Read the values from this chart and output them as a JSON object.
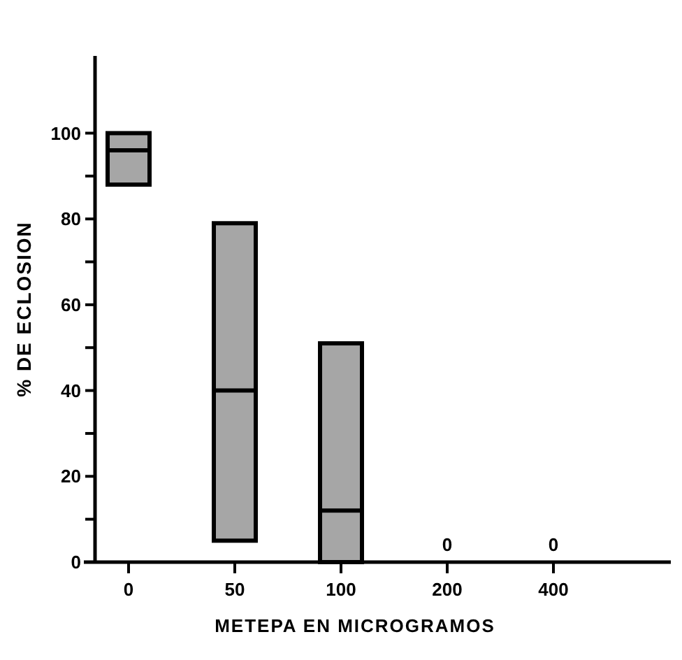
{
  "chart_data": {
    "type": "box",
    "xlabel": "METEPA  EN  MICROGRAMOS",
    "ylabel": "%  DE  ECLOSION",
    "categories": [
      "0",
      "50",
      "100",
      "200",
      "400"
    ],
    "color": "#a6a6a6",
    "boxes": [
      {
        "low": 88,
        "q1": 88,
        "median": 96,
        "q3": 100,
        "high": 100
      },
      {
        "low": 5,
        "q1": 5,
        "median": 40,
        "q3": 79,
        "high": 79
      },
      {
        "low": 0,
        "q1": 0,
        "median": 12,
        "q3": 51,
        "high": 51
      },
      null,
      null
    ],
    "ylim": [
      0,
      118
    ],
    "yticks": [
      0,
      {
        "value": 10,
        "label": null
      },
      20,
      {
        "value": 30,
        "label": null
      },
      40,
      {
        "value": 50,
        "label": null
      },
      60,
      {
        "value": 70,
        "label": null
      },
      80,
      {
        "value": 90,
        "label": null
      },
      100
    ],
    "annotations": [
      "0",
      "0"
    ],
    "grid": false
  }
}
